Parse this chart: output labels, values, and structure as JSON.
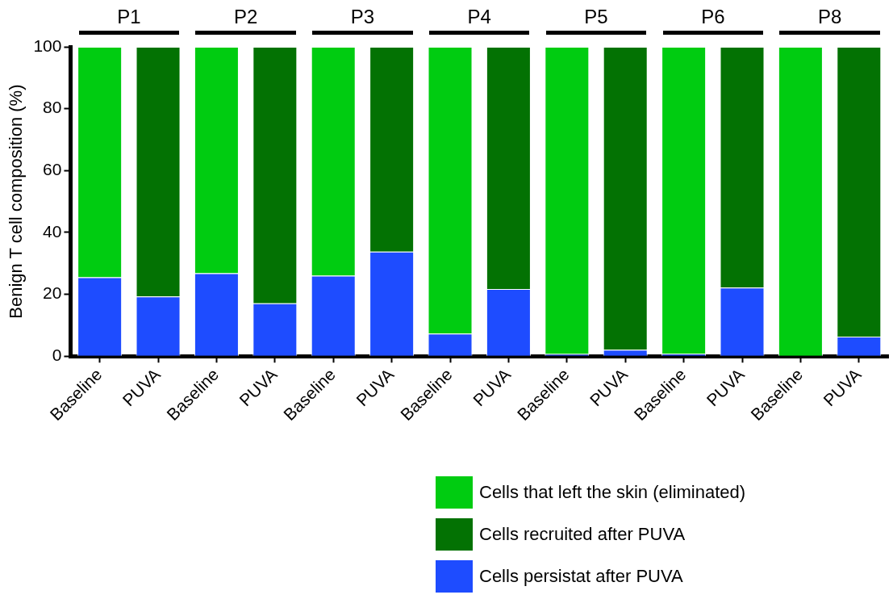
{
  "chart_data": {
    "type": "bar",
    "stacked": true,
    "ylabel": "Benign T cell composition (%)",
    "categories": [
      "Baseline",
      "PUVA",
      "Baseline",
      "PUVA",
      "Baseline",
      "PUVA",
      "Baseline",
      "PUVA",
      "Baseline",
      "PUVA",
      "Baseline",
      "PUVA",
      "Baseline",
      "PUVA"
    ],
    "series": [
      {
        "name": "Cells persistat after PUVA",
        "color": "#1e4cff",
        "values": [
          25.5,
          19.3,
          26.8,
          17.1,
          26,
          33.8,
          7.3,
          21.7,
          0.7,
          2.1,
          0.8,
          22.2,
          0,
          6.3
        ]
      },
      {
        "name": "Cells that left the skin (eliminated)",
        "color": "#00cc11",
        "values": [
          74.5,
          null,
          73.2,
          null,
          74,
          null,
          92.7,
          null,
          99.3,
          null,
          99.2,
          null,
          100,
          null
        ]
      },
      {
        "name": "Cells recruited after PUVA",
        "color": "#037203",
        "values": [
          null,
          80.7,
          null,
          82.9,
          null,
          66.2,
          null,
          78.3,
          null,
          97.9,
          null,
          77.8,
          null,
          93.7
        ]
      }
    ],
    "ylim": [
      0,
      100
    ],
    "yticks": [
      0,
      20,
      40,
      60,
      80,
      100
    ],
    "grid": false,
    "legend": "bottom right",
    "annotations": [
      "P1",
      "P2",
      "P3",
      "P4",
      "P5",
      "P6",
      "P8"
    ]
  }
}
